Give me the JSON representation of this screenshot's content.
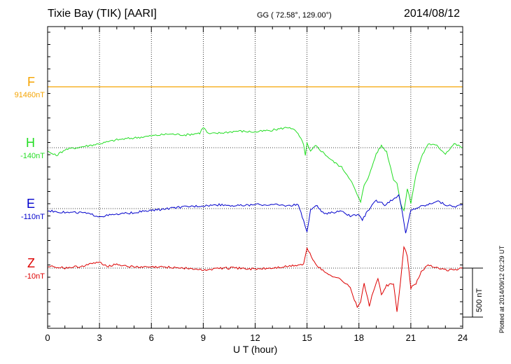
{
  "header": {
    "station": "Tixie Bay (TIK)  [AARI]",
    "coords": "GG ( 72.58°, 129.00°)",
    "date": "2014/08/12"
  },
  "footer": {
    "plotted": "Plotted at 2014/09/12 02:29 UT",
    "scale_label": "500 nT"
  },
  "colors": {
    "F": "#f5a300",
    "H": "#22dd22",
    "E": "#0000cc",
    "Z": "#dd0000",
    "grid": "#000000"
  },
  "chart_data": {
    "type": "line",
    "xlabel": "U T (hour)",
    "xlim": [
      0,
      24
    ],
    "xticks": [
      "0",
      "3",
      "6",
      "9",
      "12",
      "15",
      "18",
      "21",
      "24"
    ],
    "scale_bar_nT": 500,
    "grid": "dotted vertical every 3 h, dotted baseline per component",
    "series": [
      {
        "name": "F",
        "baseline_label": "91460nT",
        "x": [
          0,
          24
        ],
        "y": [
          0,
          0
        ]
      },
      {
        "name": "H",
        "baseline_label": "-140nT",
        "x": [
          0,
          0.5,
          1,
          2,
          3,
          4,
          5,
          6,
          7,
          8,
          8.8,
          9,
          9.3,
          10,
          11,
          12,
          13,
          14,
          14.4,
          14.8,
          14.9,
          15,
          15.2,
          15.5,
          16,
          16.5,
          17,
          17.5,
          17.9,
          18.1,
          18.3,
          18.6,
          19,
          19.3,
          19.6,
          20,
          20.2,
          20.4,
          20.6,
          20.8,
          21,
          21.3,
          21.6,
          22,
          22.5,
          23,
          23.5,
          24
        ],
        "y": [
          -40,
          -80,
          -20,
          10,
          40,
          80,
          100,
          120,
          140,
          130,
          150,
          210,
          140,
          150,
          170,
          160,
          180,
          210,
          160,
          40,
          -80,
          40,
          -40,
          20,
          -60,
          -140,
          -200,
          -320,
          -480,
          -560,
          -380,
          -280,
          -60,
          20,
          -40,
          -320,
          -360,
          -560,
          -640,
          -420,
          -560,
          -280,
          -100,
          40,
          20,
          -60,
          40,
          0
        ]
      },
      {
        "name": "E",
        "baseline_label": "-110nT",
        "x": [
          0,
          1,
          2,
          3,
          4,
          5,
          6,
          7,
          8,
          9,
          10,
          11,
          12,
          13,
          14,
          14.5,
          14.8,
          15,
          15.2,
          15.5,
          16,
          16.5,
          17,
          17.5,
          18,
          18.2,
          18.5,
          19,
          19.5,
          20,
          20.3,
          20.5,
          20.7,
          21,
          21.5,
          22,
          22.5,
          23,
          23.5,
          24
        ],
        "y": [
          -20,
          -40,
          -40,
          -80,
          -60,
          -40,
          -20,
          0,
          20,
          30,
          40,
          30,
          40,
          40,
          30,
          40,
          -120,
          -240,
          -20,
          40,
          -60,
          -40,
          -20,
          -80,
          -60,
          -120,
          -20,
          80,
          40,
          100,
          140,
          -20,
          -260,
          -20,
          20,
          40,
          80,
          40,
          20,
          40
        ]
      },
      {
        "name": "Z",
        "baseline_label": "-10nT",
        "x": [
          0,
          1,
          2,
          3,
          3.5,
          4,
          5,
          6,
          7,
          8,
          9,
          10,
          11,
          12,
          13,
          14,
          14.8,
          15,
          15.5,
          16,
          16.5,
          17,
          17.5,
          17.9,
          18.1,
          18.3,
          18.6,
          18.9,
          19.1,
          19.3,
          19.6,
          20,
          20.2,
          20.4,
          20.6,
          20.8,
          21,
          21.3,
          21.6,
          22,
          22.5,
          23,
          23.5,
          24
        ],
        "y": [
          20,
          0,
          20,
          60,
          20,
          40,
          10,
          10,
          10,
          0,
          -20,
          0,
          0,
          -10,
          0,
          20,
          40,
          200,
          40,
          -40,
          -80,
          -120,
          -200,
          -400,
          -340,
          -160,
          -380,
          -200,
          -100,
          -280,
          -180,
          -160,
          -440,
          -160,
          220,
          120,
          -200,
          -160,
          -40,
          40,
          0,
          -20,
          -20,
          0
        ]
      }
    ]
  }
}
